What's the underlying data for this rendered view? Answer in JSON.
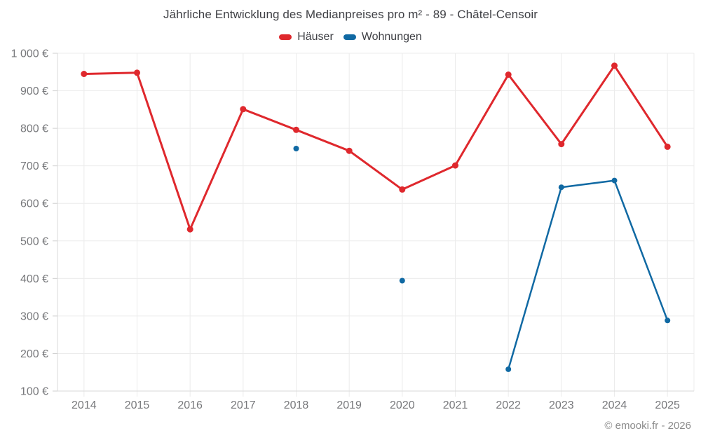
{
  "title": "Jährliche Entwicklung des Medianpreises pro m² - 89 - Châtel-Censoir",
  "footer": "© emooki.fr - 2026",
  "legend": {
    "items": [
      {
        "label": "Häuser",
        "color": "#df282d"
      },
      {
        "label": "Wohnungen",
        "color": "#1069a3"
      }
    ]
  },
  "chart_data": {
    "type": "line",
    "title": "Jährliche Entwicklung des Medianpreises pro m² - 89 - Châtel-Censoir",
    "categories": [
      "2014",
      "2015",
      "2016",
      "2017",
      "2018",
      "2019",
      "2020",
      "2021",
      "2022",
      "2023",
      "2024",
      "2025"
    ],
    "series": [
      {
        "name": "Häuser",
        "color": "#df282d",
        "values": [
          945,
          948,
          531,
          851,
          796,
          740,
          637,
          701,
          943,
          758,
          967,
          751
        ]
      },
      {
        "name": "Wohnungen",
        "color": "#1069a3",
        "values": [
          null,
          null,
          null,
          null,
          746,
          null,
          394,
          null,
          158,
          643,
          661,
          288
        ]
      }
    ],
    "xlabel": "",
    "ylabel": "",
    "ylim": [
      100,
      1000
    ],
    "yticks": [
      {
        "v": 100,
        "label": "100 €"
      },
      {
        "v": 200,
        "label": "200 €"
      },
      {
        "v": 300,
        "label": "300 €"
      },
      {
        "v": 400,
        "label": "400 €"
      },
      {
        "v": 500,
        "label": "500 €"
      },
      {
        "v": 600,
        "label": "600 €"
      },
      {
        "v": 700,
        "label": "700 €"
      },
      {
        "v": 800,
        "label": "800 €"
      },
      {
        "v": 900,
        "label": "900 €"
      },
      {
        "v": 1000,
        "label": "1 000 €"
      }
    ],
    "grid": true,
    "legend_position": "top",
    "annotations": [
      "© emooki.fr - 2026"
    ]
  }
}
